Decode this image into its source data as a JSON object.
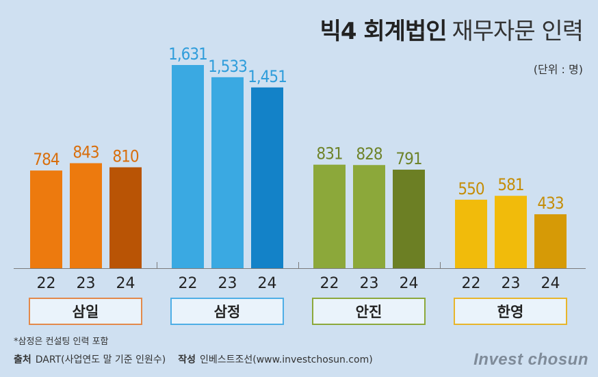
{
  "title": {
    "bold": "빅4 회계법인",
    "light": "재무자문 인력"
  },
  "unit": "(단위 : 명)",
  "footnote": "*삼정은 컨설팅 인력 포함",
  "source": {
    "label": "출처",
    "text": "DART(사업연도 말 기준 인원수)",
    "author_label": "작성",
    "author": "인베스트조선(www.investchosun.com)"
  },
  "brand": "Invest chosun",
  "chart_data": {
    "type": "bar",
    "title": "빅4 회계법인 재무자문 인력",
    "unit": "(단위 : 명)",
    "ylim": [
      0,
      1631
    ],
    "grid": false,
    "groups": [
      {
        "name": "삼일",
        "years": [
          "22",
          "23",
          "24"
        ],
        "values": [
          784,
          843,
          810
        ],
        "labels": [
          "784",
          "843",
          "810"
        ],
        "colors": [
          "#ed7a0e",
          "#ed7a0e",
          "#b95405"
        ],
        "label_color": "#d86e0c",
        "box_border": "#e3894a"
      },
      {
        "name": "삼정",
        "years": [
          "22",
          "23",
          "24"
        ],
        "values": [
          1631,
          1533,
          1451
        ],
        "labels": [
          "1,631",
          "1,533",
          "1,451"
        ],
        "colors": [
          "#3aa9e2",
          "#3aa9e2",
          "#1382c8"
        ],
        "label_color": "#2f9ddb",
        "box_border": "#4eaee6"
      },
      {
        "name": "안진",
        "years": [
          "22",
          "23",
          "24"
        ],
        "values": [
          831,
          828,
          791
        ],
        "labels": [
          "831",
          "828",
          "791"
        ],
        "colors": [
          "#8ca83a",
          "#8ca83a",
          "#6c7f24"
        ],
        "label_color": "#6e832a",
        "box_border": "#8ca83a"
      },
      {
        "name": "한영",
        "years": [
          "22",
          "23",
          "24"
        ],
        "values": [
          550,
          581,
          433
        ],
        "labels": [
          "550",
          "581",
          "433"
        ],
        "colors": [
          "#f1bb0b",
          "#f1bb0b",
          "#d69a06"
        ],
        "label_color": "#c48d08",
        "box_border": "#e8b52a"
      }
    ]
  }
}
